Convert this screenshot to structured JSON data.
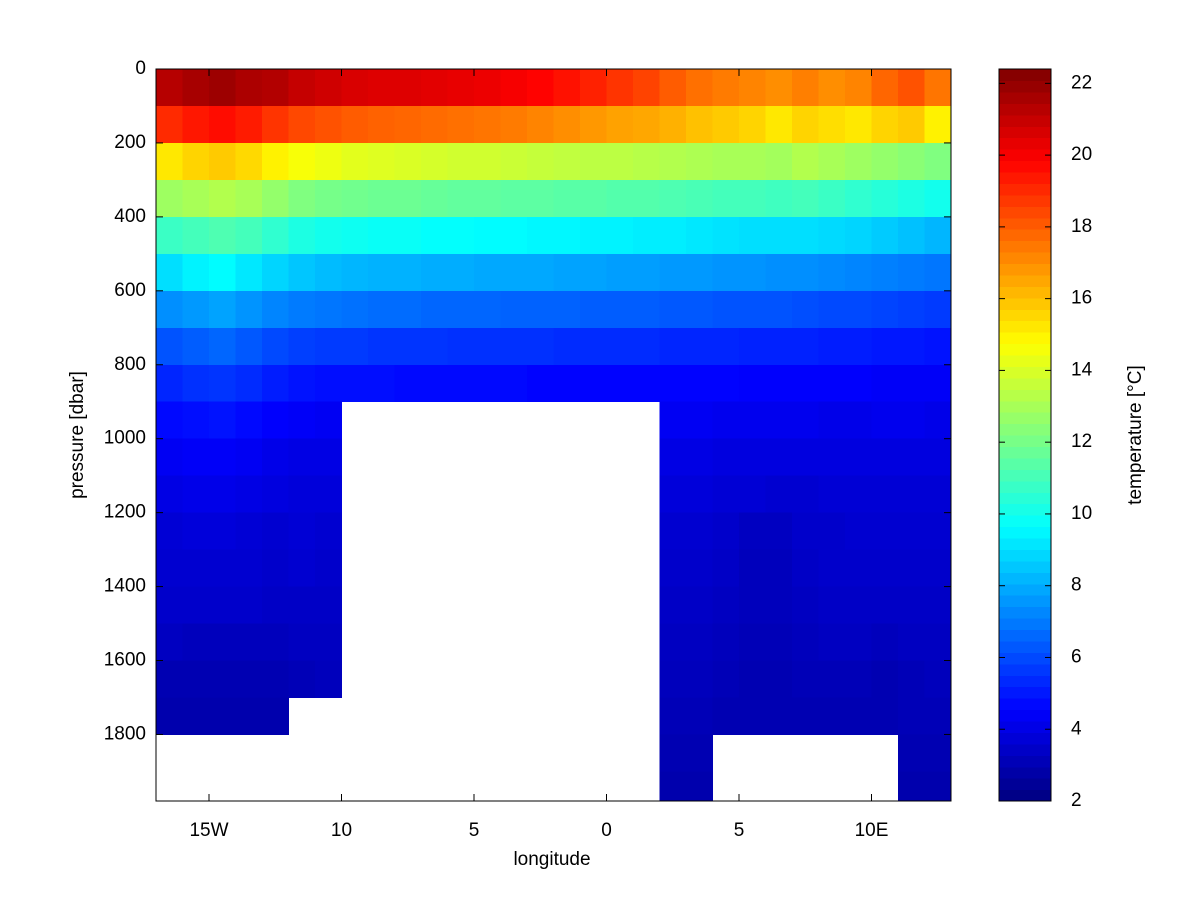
{
  "chart_data": {
    "type": "heatmap",
    "xlabel": "longitude",
    "ylabel": "pressure [dbar]",
    "colorbar_label": "temperature [°C]",
    "x": [
      -16.5,
      -15.5,
      -14.5,
      -13.5,
      -12.5,
      -11.5,
      -10.5,
      -9.5,
      -8.5,
      -7.5,
      -6.5,
      -5.5,
      -4.5,
      -3.5,
      -2.5,
      -1.5,
      -0.5,
      0.5,
      1.5,
      2.5,
      3.5,
      4.5,
      5.5,
      6.5,
      7.5,
      8.5,
      9.5,
      10.5,
      11.5,
      12.5
    ],
    "y": [
      50,
      150,
      250,
      350,
      450,
      550,
      650,
      750,
      850,
      950,
      1050,
      1150,
      1250,
      1350,
      1450,
      1550,
      1650,
      1750,
      1850,
      1950
    ],
    "z": [
      [
        21.3,
        21.6,
        21.8,
        21.5,
        21.4,
        21.0,
        20.8,
        20.6,
        20.5,
        20.5,
        20.4,
        20.3,
        20.2,
        20.0,
        19.8,
        19.5,
        19.2,
        18.8,
        18.5,
        18.0,
        17.6,
        17.4,
        17.2,
        17.0,
        17.3,
        17.0,
        17.2,
        17.8,
        18.2,
        17.5
      ],
      [
        19.0,
        19.4,
        19.6,
        19.3,
        18.8,
        18.4,
        18.2,
        18.0,
        17.9,
        17.8,
        17.7,
        17.6,
        17.5,
        17.4,
        17.2,
        17.0,
        16.8,
        16.6,
        16.5,
        16.3,
        16.0,
        15.8,
        15.6,
        15.2,
        15.6,
        15.4,
        15.2,
        15.6,
        15.8,
        15.0
      ],
      [
        15.2,
        15.6,
        15.8,
        15.5,
        15.0,
        14.6,
        14.4,
        14.2,
        14.1,
        14.0,
        13.9,
        13.8,
        13.8,
        13.7,
        13.6,
        13.5,
        13.4,
        13.4,
        13.3,
        13.2,
        13.1,
        13.0,
        13.0,
        12.9,
        13.2,
        13.0,
        12.8,
        12.6,
        12.4,
        12.2
      ],
      [
        12.8,
        13.0,
        13.2,
        13.0,
        12.6,
        12.2,
        12.0,
        11.9,
        11.8,
        11.8,
        11.7,
        11.6,
        11.6,
        11.5,
        11.5,
        11.4,
        11.4,
        11.3,
        11.3,
        11.2,
        11.1,
        11.0,
        11.0,
        10.9,
        11.0,
        10.8,
        10.6,
        10.4,
        10.2,
        10.0
      ],
      [
        10.8,
        11.0,
        11.2,
        11.0,
        10.6,
        10.2,
        10.0,
        9.9,
        9.8,
        9.8,
        9.7,
        9.7,
        9.6,
        9.6,
        9.5,
        9.5,
        9.4,
        9.4,
        9.3,
        9.3,
        9.2,
        9.1,
        9.0,
        9.0,
        9.0,
        8.9,
        8.8,
        8.6,
        8.4,
        8.2
      ],
      [
        9.0,
        9.4,
        9.6,
        9.2,
        8.8,
        8.5,
        8.3,
        8.2,
        8.1,
        8.1,
        8.0,
        8.0,
        7.9,
        7.9,
        7.9,
        7.8,
        7.8,
        7.7,
        7.7,
        7.6,
        7.6,
        7.5,
        7.5,
        7.4,
        7.4,
        7.3,
        7.2,
        7.1,
        7.0,
        6.9
      ],
      [
        7.4,
        7.6,
        7.8,
        7.5,
        7.2,
        7.0,
        6.9,
        6.8,
        6.7,
        6.7,
        6.6,
        6.6,
        6.6,
        6.5,
        6.5,
        6.5,
        6.4,
        6.4,
        6.4,
        6.3,
        6.3,
        6.2,
        6.2,
        6.2,
        6.1,
        6.0,
        6.0,
        5.9,
        5.8,
        5.7
      ],
      [
        6.2,
        6.4,
        6.6,
        6.3,
        6.0,
        5.8,
        5.7,
        5.7,
        5.6,
        5.6,
        5.6,
        5.5,
        5.5,
        5.5,
        5.5,
        5.4,
        5.4,
        5.4,
        5.4,
        5.3,
        5.3,
        5.3,
        5.2,
        5.2,
        5.2,
        5.1,
        5.1,
        5.0,
        5.0,
        4.9
      ],
      [
        5.3,
        5.5,
        5.6,
        5.4,
        5.1,
        4.9,
        4.8,
        4.8,
        4.8,
        4.7,
        4.7,
        4.7,
        4.7,
        4.7,
        4.6,
        4.6,
        4.6,
        4.6,
        4.6,
        4.6,
        4.6,
        4.6,
        4.5,
        4.5,
        4.5,
        4.5,
        4.5,
        4.4,
        4.4,
        4.4
      ],
      [
        4.7,
        4.8,
        4.9,
        4.7,
        4.5,
        4.4,
        4.3,
        null,
        null,
        null,
        null,
        null,
        null,
        null,
        null,
        null,
        null,
        null,
        null,
        4.3,
        4.3,
        4.2,
        4.2,
        4.2,
        4.2,
        4.1,
        4.1,
        4.2,
        4.2,
        4.1
      ],
      [
        4.3,
        4.4,
        4.4,
        4.3,
        4.1,
        4.0,
        4.0,
        null,
        null,
        null,
        null,
        null,
        null,
        null,
        null,
        null,
        null,
        null,
        null,
        4.0,
        4.0,
        3.9,
        3.9,
        3.9,
        3.9,
        3.9,
        3.9,
        3.9,
        3.9,
        3.9
      ],
      [
        4.0,
        4.1,
        4.1,
        4.0,
        3.9,
        3.8,
        3.8,
        null,
        null,
        null,
        null,
        null,
        null,
        null,
        null,
        null,
        null,
        null,
        null,
        3.8,
        3.8,
        3.7,
        3.7,
        3.6,
        3.6,
        3.7,
        3.7,
        3.7,
        3.7,
        3.7
      ],
      [
        3.7,
        3.8,
        3.8,
        3.7,
        3.6,
        3.7,
        3.6,
        null,
        null,
        null,
        null,
        null,
        null,
        null,
        null,
        null,
        null,
        null,
        null,
        3.6,
        3.6,
        3.5,
        3.3,
        3.3,
        3.5,
        3.5,
        3.6,
        3.6,
        3.6,
        3.6
      ],
      [
        3.6,
        3.6,
        3.6,
        3.6,
        3.5,
        3.6,
        3.5,
        null,
        null,
        null,
        null,
        null,
        null,
        null,
        null,
        null,
        null,
        null,
        null,
        3.5,
        3.5,
        3.4,
        3.2,
        3.2,
        3.4,
        3.5,
        3.5,
        3.5,
        3.5,
        3.5
      ],
      [
        3.5,
        3.5,
        3.5,
        3.5,
        3.4,
        3.4,
        3.4,
        null,
        null,
        null,
        null,
        null,
        null,
        null,
        null,
        null,
        null,
        null,
        null,
        3.4,
        3.4,
        3.3,
        3.2,
        3.2,
        3.3,
        3.4,
        3.4,
        3.4,
        3.4,
        3.4
      ],
      [
        3.3,
        3.2,
        3.2,
        3.2,
        3.2,
        3.3,
        3.3,
        null,
        null,
        null,
        null,
        null,
        null,
        null,
        null,
        null,
        null,
        null,
        null,
        3.3,
        3.3,
        3.2,
        3.1,
        3.1,
        3.2,
        3.3,
        3.3,
        3.2,
        3.3,
        3.3
      ],
      [
        3.0,
        3.0,
        3.0,
        3.0,
        3.0,
        3.1,
        3.2,
        null,
        null,
        null,
        null,
        null,
        null,
        null,
        null,
        null,
        null,
        null,
        null,
        3.2,
        3.2,
        3.1,
        3.0,
        3.0,
        3.1,
        3.1,
        3.1,
        3.0,
        3.1,
        3.2
      ],
      [
        2.9,
        2.9,
        2.9,
        2.9,
        2.9,
        null,
        null,
        null,
        null,
        null,
        null,
        null,
        null,
        null,
        null,
        null,
        null,
        null,
        null,
        3.1,
        3.1,
        3.0,
        3.0,
        3.0,
        3.0,
        3.0,
        3.0,
        3.0,
        3.1,
        3.1
      ],
      [
        null,
        null,
        null,
        null,
        null,
        null,
        null,
        null,
        null,
        null,
        null,
        null,
        null,
        null,
        null,
        null,
        null,
        null,
        null,
        3.0,
        3.0,
        null,
        null,
        null,
        null,
        null,
        null,
        null,
        3.0,
        3.0
      ],
      [
        null,
        null,
        null,
        null,
        null,
        null,
        null,
        null,
        null,
        null,
        null,
        null,
        null,
        null,
        null,
        null,
        null,
        null,
        null,
        2.9,
        2.9,
        null,
        null,
        null,
        null,
        null,
        null,
        null,
        2.9,
        2.9
      ]
    ],
    "xlim": [
      -17,
      13
    ],
    "xticks": [
      {
        "value": -15,
        "label": "15W"
      },
      {
        "value": -10,
        "label": "10"
      },
      {
        "value": -5,
        "label": "5"
      },
      {
        "value": 0,
        "label": "0"
      },
      {
        "value": 5,
        "label": "5"
      },
      {
        "value": 10,
        "label": "10E"
      }
    ],
    "ylim": [
      0,
      1980
    ],
    "yreverse": true,
    "yticks": [
      0,
      200,
      400,
      600,
      800,
      1000,
      1200,
      1400,
      1600,
      1800
    ],
    "clim": [
      2,
      22.4
    ],
    "colormap": "jet",
    "colorbar_ticks": [
      2,
      4,
      6,
      8,
      10,
      12,
      14,
      16,
      18,
      20,
      22
    ]
  }
}
